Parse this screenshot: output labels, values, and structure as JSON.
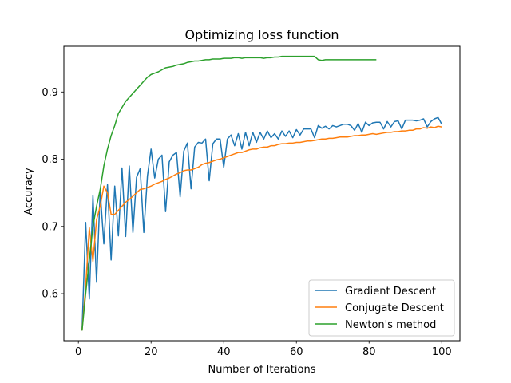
{
  "chart_data": {
    "type": "line",
    "title": "Optimizing loss function",
    "xlabel": "Number of Iterations",
    "ylabel": "Accuracy",
    "xlim": [
      -4,
      105
    ],
    "ylim": [
      0.53,
      0.968
    ],
    "xticks": [
      0,
      20,
      40,
      60,
      80,
      100
    ],
    "yticks": [
      0.6,
      0.7,
      0.8,
      0.9
    ],
    "ytick_labels": [
      "0.6",
      "0.7",
      "0.8",
      "0.9"
    ],
    "grid": false,
    "legend_position": "lower-right",
    "series": [
      {
        "name": "Gradient Descent",
        "color": "#1f77b4",
        "x": [
          1,
          2,
          3,
          4,
          5,
          6,
          7,
          8,
          9,
          10,
          11,
          12,
          13,
          14,
          15,
          16,
          17,
          18,
          19,
          20,
          21,
          22,
          23,
          24,
          25,
          26,
          27,
          28,
          29,
          30,
          31,
          32,
          33,
          34,
          35,
          36,
          37,
          38,
          39,
          40,
          41,
          42,
          43,
          44,
          45,
          46,
          47,
          48,
          49,
          50,
          51,
          52,
          53,
          54,
          55,
          56,
          57,
          58,
          59,
          60,
          61,
          62,
          63,
          64,
          65,
          66,
          67,
          68,
          69,
          70,
          71,
          72,
          73,
          74,
          75,
          76,
          77,
          78,
          79,
          80,
          81,
          82,
          83,
          84,
          85,
          86,
          87,
          88,
          89,
          90,
          91,
          92,
          93,
          94,
          95,
          96,
          97,
          98,
          99,
          100
        ],
        "y": [
          0.545,
          0.706,
          0.592,
          0.746,
          0.617,
          0.752,
          0.674,
          0.762,
          0.65,
          0.76,
          0.686,
          0.787,
          0.685,
          0.79,
          0.691,
          0.773,
          0.786,
          0.691,
          0.775,
          0.815,
          0.772,
          0.8,
          0.806,
          0.722,
          0.796,
          0.806,
          0.81,
          0.744,
          0.812,
          0.824,
          0.756,
          0.818,
          0.825,
          0.824,
          0.83,
          0.768,
          0.823,
          0.83,
          0.83,
          0.788,
          0.83,
          0.836,
          0.82,
          0.838,
          0.815,
          0.84,
          0.82,
          0.84,
          0.825,
          0.84,
          0.83,
          0.842,
          0.832,
          0.838,
          0.83,
          0.842,
          0.834,
          0.842,
          0.832,
          0.844,
          0.836,
          0.845,
          0.845,
          0.845,
          0.832,
          0.85,
          0.846,
          0.849,
          0.845,
          0.85,
          0.848,
          0.85,
          0.852,
          0.852,
          0.85,
          0.843,
          0.853,
          0.84,
          0.855,
          0.85,
          0.854,
          0.855,
          0.855,
          0.845,
          0.856,
          0.848,
          0.856,
          0.857,
          0.845,
          0.858,
          0.858,
          0.858,
          0.857,
          0.858,
          0.86,
          0.848,
          0.856,
          0.86,
          0.862,
          0.852
        ]
      },
      {
        "name": "Conjugate Descent",
        "color": "#ff7f0e",
        "x": [
          1,
          2,
          3,
          4,
          5,
          6,
          7,
          8,
          9,
          10,
          11,
          12,
          13,
          14,
          15,
          16,
          17,
          18,
          19,
          20,
          21,
          22,
          23,
          24,
          25,
          26,
          27,
          28,
          29,
          30,
          31,
          32,
          33,
          34,
          35,
          36,
          37,
          38,
          39,
          40,
          41,
          42,
          43,
          44,
          45,
          46,
          47,
          48,
          49,
          50,
          51,
          52,
          53,
          54,
          55,
          56,
          57,
          58,
          59,
          60,
          61,
          62,
          63,
          64,
          65,
          66,
          67,
          68,
          69,
          70,
          71,
          72,
          73,
          74,
          75,
          76,
          77,
          78,
          79,
          80,
          81,
          82,
          83,
          84,
          85,
          86,
          87,
          88,
          89,
          90,
          91,
          92,
          93,
          94,
          95,
          96,
          97,
          98,
          99,
          100
        ],
        "y": [
          0.545,
          0.61,
          0.698,
          0.648,
          0.71,
          0.73,
          0.76,
          0.75,
          0.718,
          0.718,
          0.724,
          0.73,
          0.736,
          0.74,
          0.745,
          0.75,
          0.755,
          0.756,
          0.758,
          0.76,
          0.763,
          0.765,
          0.767,
          0.77,
          0.772,
          0.775,
          0.778,
          0.78,
          0.783,
          0.784,
          0.784,
          0.786,
          0.788,
          0.792,
          0.794,
          0.795,
          0.797,
          0.799,
          0.8,
          0.802,
          0.804,
          0.806,
          0.808,
          0.81,
          0.81,
          0.812,
          0.814,
          0.815,
          0.815,
          0.817,
          0.818,
          0.818,
          0.82,
          0.82,
          0.822,
          0.823,
          0.823,
          0.824,
          0.824,
          0.825,
          0.825,
          0.826,
          0.827,
          0.827,
          0.828,
          0.829,
          0.83,
          0.83,
          0.831,
          0.831,
          0.832,
          0.833,
          0.833,
          0.833,
          0.834,
          0.835,
          0.835,
          0.836,
          0.836,
          0.837,
          0.838,
          0.837,
          0.838,
          0.839,
          0.84,
          0.84,
          0.841,
          0.841,
          0.842,
          0.842,
          0.843,
          0.843,
          0.845,
          0.845,
          0.847,
          0.846,
          0.848,
          0.847,
          0.849,
          0.848
        ]
      },
      {
        "name": "Newton's method",
        "color": "#2ca02c",
        "x": [
          1,
          2,
          3,
          4,
          5,
          6,
          7,
          8,
          9,
          10,
          11,
          12,
          13,
          14,
          15,
          16,
          17,
          18,
          19,
          20,
          21,
          22,
          23,
          24,
          25,
          26,
          27,
          28,
          29,
          30,
          31,
          32,
          33,
          34,
          35,
          36,
          37,
          38,
          39,
          40,
          41,
          42,
          43,
          44,
          45,
          46,
          47,
          48,
          49,
          50,
          51,
          52,
          53,
          54,
          55,
          56,
          57,
          58,
          59,
          60,
          61,
          62,
          63,
          64,
          65,
          66,
          67,
          68,
          69,
          70,
          71,
          72,
          73,
          74,
          75,
          76,
          77,
          78,
          79,
          80,
          81,
          82
        ],
        "y": [
          0.545,
          0.6,
          0.65,
          0.7,
          0.73,
          0.755,
          0.79,
          0.815,
          0.835,
          0.85,
          0.868,
          0.877,
          0.886,
          0.892,
          0.898,
          0.904,
          0.91,
          0.916,
          0.922,
          0.926,
          0.928,
          0.93,
          0.933,
          0.936,
          0.937,
          0.938,
          0.94,
          0.941,
          0.942,
          0.944,
          0.945,
          0.946,
          0.946,
          0.947,
          0.948,
          0.948,
          0.949,
          0.949,
          0.949,
          0.95,
          0.95,
          0.95,
          0.951,
          0.951,
          0.95,
          0.951,
          0.951,
          0.951,
          0.951,
          0.951,
          0.95,
          0.951,
          0.951,
          0.952,
          0.952,
          0.953,
          0.953,
          0.953,
          0.953,
          0.953,
          0.953,
          0.953,
          0.953,
          0.953,
          0.953,
          0.948,
          0.947,
          0.948,
          0.948,
          0.948,
          0.948,
          0.948,
          0.948,
          0.948,
          0.948,
          0.948,
          0.948,
          0.948,
          0.948,
          0.948,
          0.948,
          0.948
        ]
      }
    ]
  }
}
